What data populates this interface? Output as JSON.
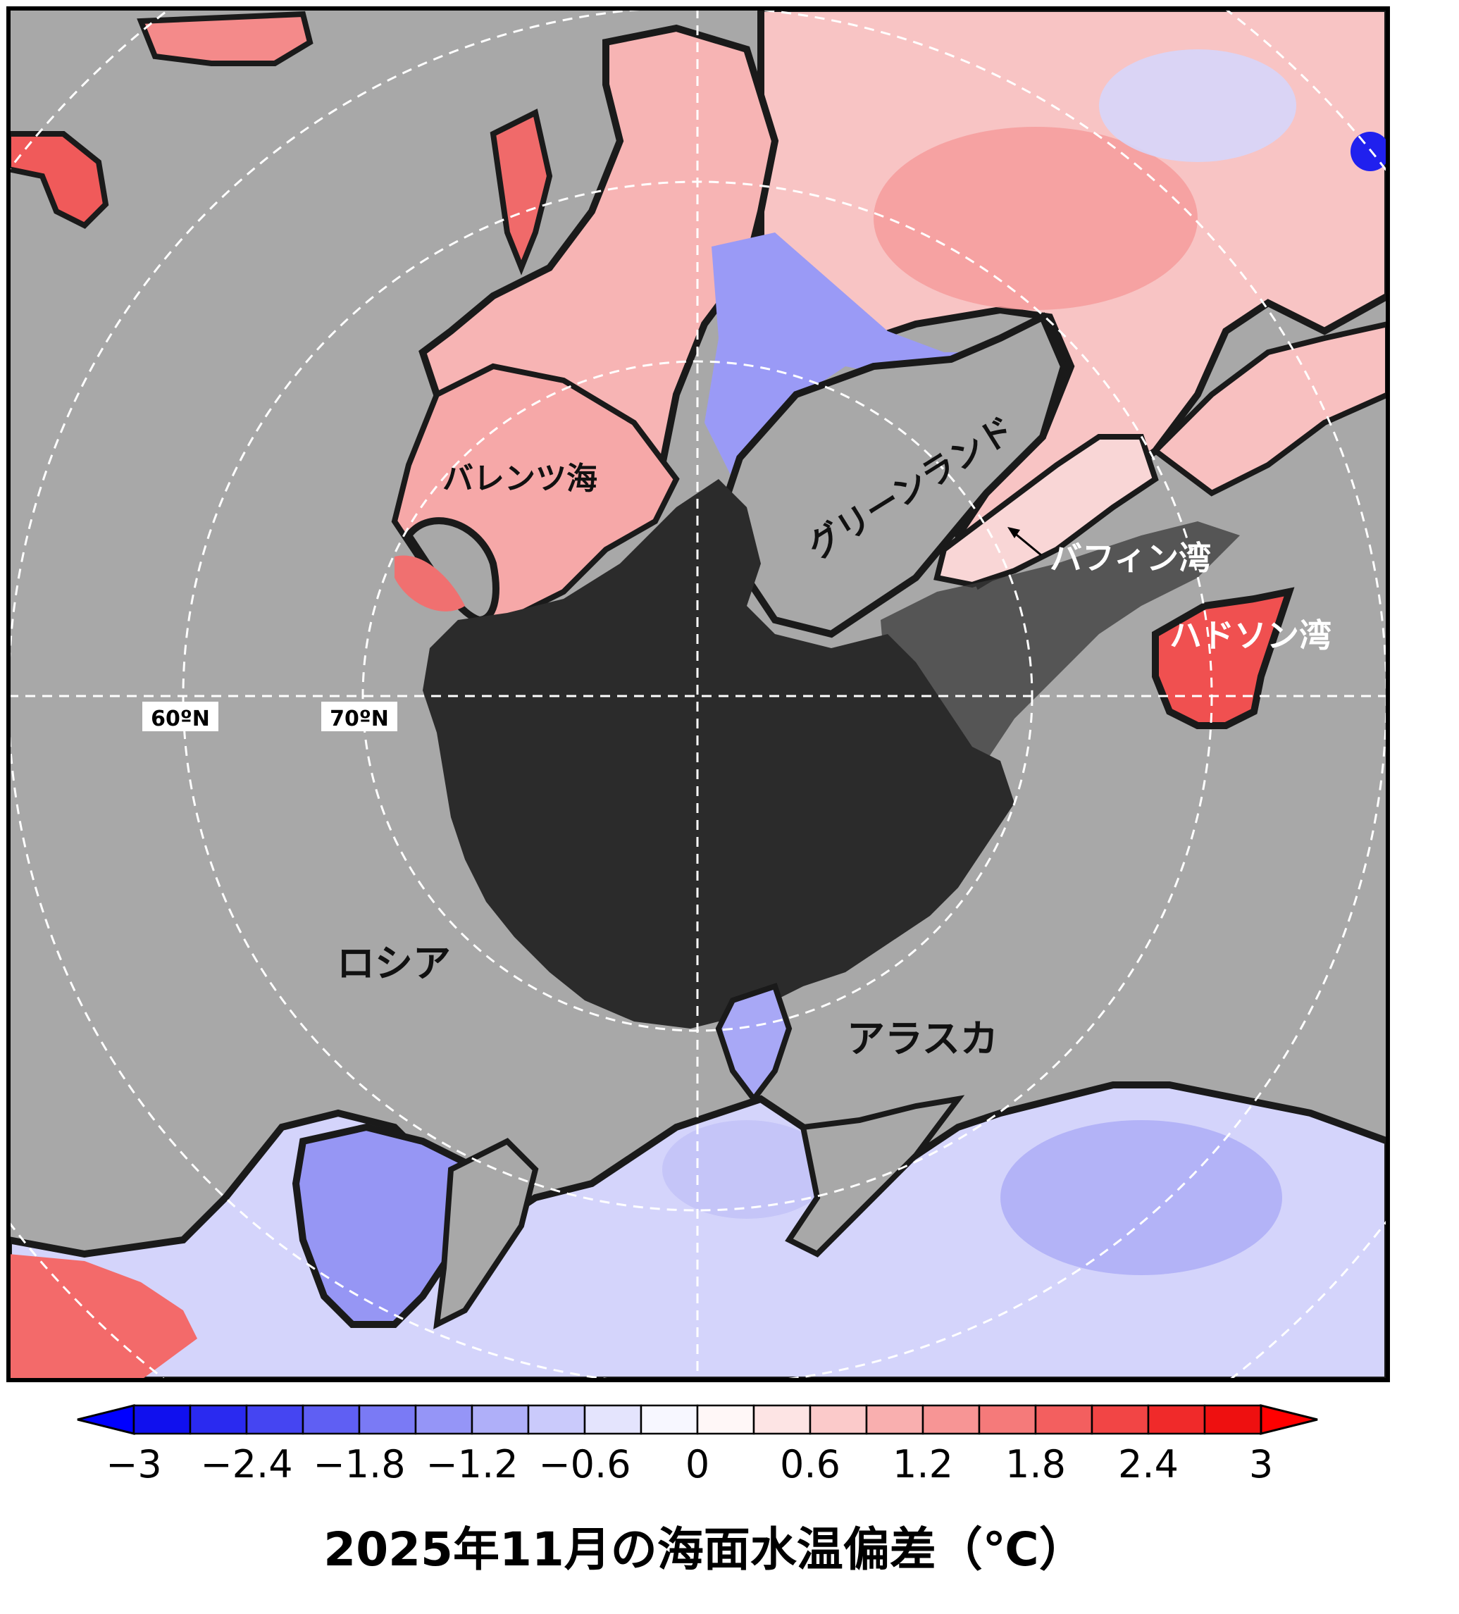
{
  "labels": {
    "barents": "バレンツ海",
    "greenland": "グリーンランド",
    "baffin": "バフィン湾",
    "hudson": "ハドソン湾",
    "russia": "ロシア",
    "alaska": "アラスカ"
  },
  "latitude_labels": [
    "60ºN",
    "70ºN"
  ],
  "title": "2025年11月の海面水温偏差（℃）",
  "colorbar": {
    "unit": "℃",
    "ticks": [
      "−3",
      "−2.4",
      "−1.8",
      "−1.2",
      "−0.6",
      "0",
      "0.6",
      "1.2",
      "1.8",
      "2.4",
      "3"
    ],
    "colors": [
      "#1010ee",
      "#2a2af0",
      "#4545f2",
      "#5f5ff3",
      "#7a7af5",
      "#9595f7",
      "#afaff9",
      "#cacafb",
      "#e4e4fd",
      "#f7f7ff",
      "#fff7f7",
      "#fde4e4",
      "#fbcaca",
      "#f9afaf",
      "#f79595",
      "#f57a7a",
      "#f35f5f",
      "#f24545",
      "#f02a2a",
      "#ee1010"
    ],
    "low_arrow_color": "#0000ff",
    "high_arrow_color": "#ff0000"
  },
  "colors": {
    "land": "#a8a8a8",
    "sea_ice": "#2b2b2b",
    "coast": "#1a1a1a"
  }
}
